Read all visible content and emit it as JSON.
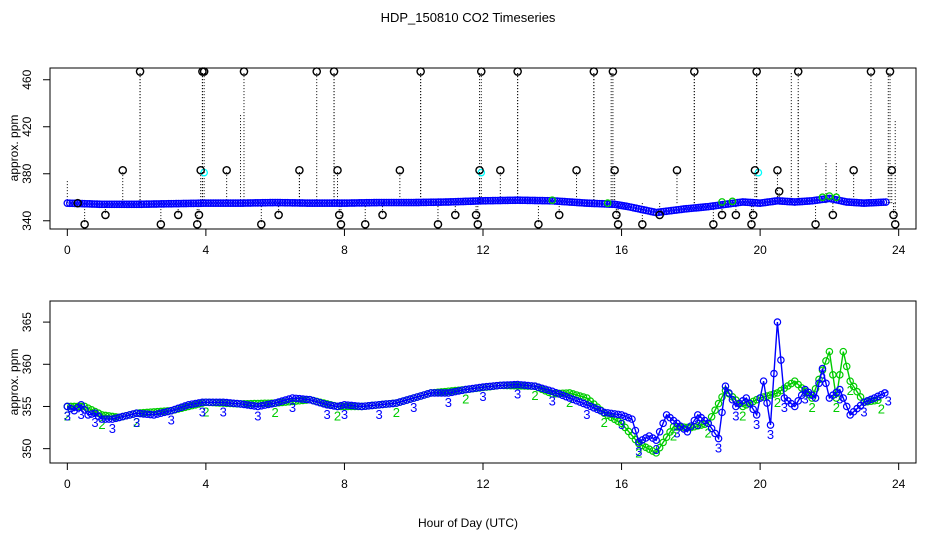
{
  "title": "HDP_150810  CO2 Timeseries",
  "xlabel": "Hour of Day (UTC)",
  "colors": {
    "primary": "#0000ff",
    "secondary": "#00cc00",
    "highlight": "#00ffff",
    "flag": "#000000",
    "frame": "#000000"
  },
  "chart_data": [
    {
      "type": "scatter",
      "panel": "top",
      "title": "HDP_150810  CO2 Timeseries",
      "xlabel": "",
      "ylabel": "approx. ppm",
      "xlim": [
        -0.5,
        24.5
      ],
      "ylim": [
        333,
        470
      ],
      "xticks": [
        0,
        4,
        8,
        12,
        16,
        20,
        24
      ],
      "yticks": [
        340,
        380,
        420,
        460
      ],
      "baseline": [
        [
          0,
          355
        ],
        [
          1,
          354
        ],
        [
          2,
          354
        ],
        [
          3,
          354.5
        ],
        [
          4,
          355
        ],
        [
          5,
          355
        ],
        [
          6,
          355.5
        ],
        [
          7,
          355
        ],
        [
          8,
          355
        ],
        [
          9,
          355.5
        ],
        [
          10,
          355.5
        ],
        [
          11,
          356
        ],
        [
          12,
          357
        ],
        [
          13,
          357.5
        ],
        [
          14,
          357
        ],
        [
          15,
          355
        ],
        [
          15.8,
          354
        ],
        [
          16.2,
          352
        ],
        [
          17,
          347
        ],
        [
          17.8,
          350
        ],
        [
          18.5,
          352
        ],
        [
          19,
          354
        ],
        [
          19.5,
          356
        ],
        [
          20,
          355
        ],
        [
          20.5,
          357
        ],
        [
          21,
          356
        ],
        [
          21.5,
          357
        ],
        [
          22,
          359
        ],
        [
          22.5,
          356
        ],
        [
          23,
          355
        ],
        [
          23.7,
          356
        ]
      ],
      "flag_points": [
        [
          0.3,
          355
        ],
        [
          0.5,
          337
        ],
        [
          1.1,
          345
        ],
        [
          1.6,
          383
        ],
        [
          2.1,
          467
        ],
        [
          2.7,
          337
        ],
        [
          3.2,
          345
        ],
        [
          3.75,
          337
        ],
        [
          3.8,
          345
        ],
        [
          3.85,
          383
        ],
        [
          3.9,
          467
        ],
        [
          3.95,
          467
        ],
        [
          4.6,
          383
        ],
        [
          5.1,
          467
        ],
        [
          5.6,
          337
        ],
        [
          6.1,
          345
        ],
        [
          6.7,
          383
        ],
        [
          7.2,
          467
        ],
        [
          7.7,
          467
        ],
        [
          7.8,
          383
        ],
        [
          7.85,
          345
        ],
        [
          7.9,
          337
        ],
        [
          8.6,
          337
        ],
        [
          9.1,
          345
        ],
        [
          9.6,
          383
        ],
        [
          10.2,
          467
        ],
        [
          10.7,
          337
        ],
        [
          11.2,
          345
        ],
        [
          11.8,
          345
        ],
        [
          11.85,
          337
        ],
        [
          11.9,
          383
        ],
        [
          11.95,
          467
        ],
        [
          12.5,
          383
        ],
        [
          13.0,
          467
        ],
        [
          13.6,
          337
        ],
        [
          14.2,
          345
        ],
        [
          14.7,
          383
        ],
        [
          15.2,
          467
        ],
        [
          15.75,
          467
        ],
        [
          15.8,
          383
        ],
        [
          15.85,
          345
        ],
        [
          15.9,
          337
        ],
        [
          16.6,
          337
        ],
        [
          17.1,
          345
        ],
        [
          17.6,
          383
        ],
        [
          18.1,
          467
        ],
        [
          18.65,
          337
        ],
        [
          18.9,
          345
        ],
        [
          19.3,
          345
        ],
        [
          19.75,
          337
        ],
        [
          19.8,
          345
        ],
        [
          19.85,
          383
        ],
        [
          19.9,
          467
        ],
        [
          20.5,
          383
        ],
        [
          20.55,
          365
        ],
        [
          21.1,
          467
        ],
        [
          21.6,
          337
        ],
        [
          22.1,
          345
        ],
        [
          22.7,
          383
        ],
        [
          23.2,
          467
        ],
        [
          23.75,
          467
        ],
        [
          23.8,
          383
        ],
        [
          23.85,
          345
        ],
        [
          23.9,
          337
        ]
      ],
      "dotted_spikes": [
        [
          0,
          375
        ],
        [
          2.1,
          467
        ],
        [
          3.9,
          467
        ],
        [
          5.0,
          430
        ],
        [
          6.7,
          383
        ],
        [
          7.7,
          467
        ],
        [
          10.2,
          467
        ],
        [
          11.9,
          467
        ],
        [
          13.0,
          467
        ],
        [
          15.2,
          467
        ],
        [
          15.7,
          467
        ],
        [
          18.1,
          467
        ],
        [
          19.9,
          467
        ],
        [
          20.9,
          467
        ],
        [
          21.1,
          445
        ],
        [
          21.9,
          390
        ],
        [
          22.2,
          390
        ],
        [
          23.7,
          467
        ],
        [
          23.9,
          425
        ]
      ],
      "cyan_points": [
        [
          3.95,
          381
        ],
        [
          11.95,
          381
        ],
        [
          19.95,
          381
        ]
      ]
    },
    {
      "type": "line",
      "panel": "bottom",
      "xlabel": "Hour of Day (UTC)",
      "ylabel": "approx. ppm",
      "xlim": [
        -0.5,
        24.5
      ],
      "ylim": [
        348.3,
        367.5
      ],
      "xticks": [
        0,
        4,
        8,
        12,
        16,
        20,
        24
      ],
      "yticks": [
        350,
        355,
        360,
        365
      ],
      "series": [
        {
          "values": [
            [
              0,
              355
            ],
            [
              0.2,
              354.5
            ],
            [
              0.4,
              355.2
            ],
            [
              0.6,
              354
            ],
            [
              0.8,
              354.2
            ],
            [
              1,
              353.5
            ],
            [
              1.3,
              353.5
            ],
            [
              1.6,
              353.8
            ],
            [
              2,
              354.2
            ],
            [
              2.5,
              354
            ],
            [
              3,
              354.5
            ],
            [
              3.5,
              355.2
            ],
            [
              3.9,
              355.5
            ],
            [
              4,
              355.5
            ],
            [
              4.5,
              355.5
            ],
            [
              5,
              355.3
            ],
            [
              5.5,
              355
            ],
            [
              6,
              355.4
            ],
            [
              6.5,
              356
            ],
            [
              7,
              355.8
            ],
            [
              7.5,
              355.2
            ],
            [
              7.8,
              355
            ],
            [
              8,
              355.2
            ],
            [
              8.5,
              355
            ],
            [
              9,
              355.2
            ],
            [
              9.5,
              355.4
            ],
            [
              10,
              356
            ],
            [
              10.5,
              356.6
            ],
            [
              11,
              356.6
            ],
            [
              11.5,
              357
            ],
            [
              12,
              357.3
            ],
            [
              12.5,
              357.5
            ],
            [
              13,
              357.6
            ],
            [
              13.5,
              357.4
            ],
            [
              14,
              356.8
            ],
            [
              14.5,
              356
            ],
            [
              15,
              355.2
            ],
            [
              15.5,
              354.3
            ],
            [
              16,
              354
            ],
            [
              16.3,
              353.5
            ],
            [
              16.5,
              350.8
            ],
            [
              16.8,
              351.5
            ],
            [
              17,
              351
            ],
            [
              17.3,
              354
            ],
            [
              17.6,
              353
            ],
            [
              17.9,
              352
            ],
            [
              18.2,
              354
            ],
            [
              18.5,
              353
            ],
            [
              18.8,
              351.2
            ],
            [
              19,
              357.4
            ],
            [
              19.3,
              355
            ],
            [
              19.6,
              356
            ],
            [
              19.9,
              354
            ],
            [
              20.1,
              358
            ],
            [
              20.3,
              352.8
            ],
            [
              20.5,
              365
            ],
            [
              20.7,
              356
            ],
            [
              21,
              355
            ],
            [
              21.3,
              357
            ],
            [
              21.6,
              356
            ],
            [
              21.8,
              359.5
            ],
            [
              22,
              356
            ],
            [
              22.3,
              357
            ],
            [
              22.6,
              354
            ],
            [
              23,
              355.5
            ],
            [
              23.3,
              356
            ],
            [
              23.7,
              356.8
            ]
          ]
        },
        {
          "values": [
            [
              0,
              355
            ],
            [
              0.5,
              355
            ],
            [
              1,
              354
            ],
            [
              1.5,
              353.7
            ],
            [
              2,
              354.2
            ],
            [
              3,
              354.5
            ],
            [
              4,
              355.5
            ],
            [
              5,
              355.3
            ],
            [
              6,
              355.4
            ],
            [
              7,
              355.8
            ],
            [
              7.8,
              355
            ],
            [
              8.5,
              355
            ],
            [
              9.5,
              355.4
            ],
            [
              10.5,
              356.6
            ],
            [
              11.5,
              357
            ],
            [
              12.5,
              357.5
            ],
            [
              13.5,
              357.4
            ],
            [
              14,
              356.5
            ],
            [
              14.5,
              356.6
            ],
            [
              15,
              356
            ],
            [
              15.5,
              354.2
            ],
            [
              16,
              353
            ],
            [
              16.5,
              350.6
            ],
            [
              17,
              349.5
            ],
            [
              17.5,
              352.6
            ],
            [
              18,
              352.5
            ],
            [
              18.5,
              353
            ],
            [
              19,
              356.9
            ],
            [
              19.5,
              355
            ],
            [
              20,
              356
            ],
            [
              20.5,
              356.6
            ],
            [
              21,
              358
            ],
            [
              21.5,
              356
            ],
            [
              22,
              361.5
            ],
            [
              22.2,
              356
            ],
            [
              22.4,
              361.5
            ],
            [
              22.6,
              358
            ],
            [
              23,
              355.5
            ],
            [
              23.5,
              355.8
            ]
          ]
        }
      ]
    }
  ]
}
